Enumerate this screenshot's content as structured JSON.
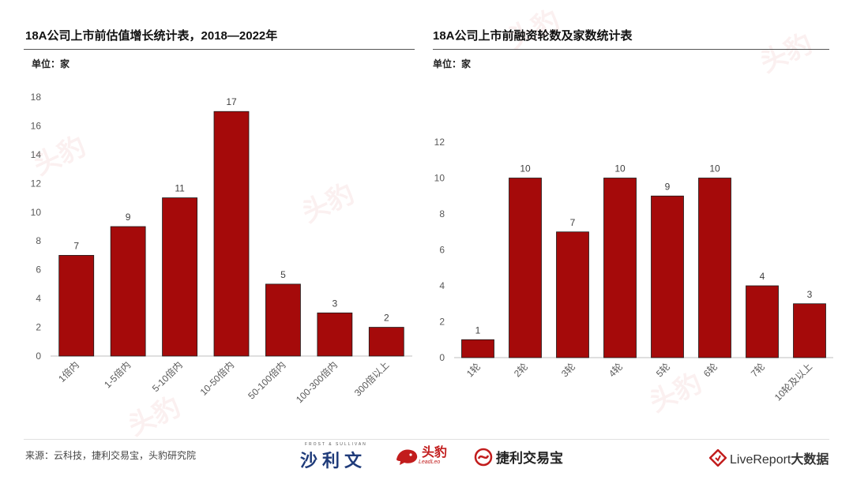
{
  "left_chart": {
    "title": "18A公司上市前估值增长统计表，2018—2022年",
    "unit": "单位：家",
    "chart_data": {
      "type": "bar",
      "categories": [
        "1倍内",
        "1-5倍内",
        "5-10倍内",
        "10-50倍内",
        "50-100倍内",
        "100-300倍内",
        "300倍以上"
      ],
      "values": [
        7,
        9,
        11,
        17,
        5,
        3,
        2
      ],
      "y_ticks": [
        0,
        2,
        4,
        6,
        8,
        10,
        12,
        14,
        16,
        18
      ],
      "ylim": [
        0,
        18
      ],
      "bar_color": "#a50a0a"
    }
  },
  "right_chart": {
    "title": "18A公司上市前融资轮数及家数统计表",
    "unit": "单位：家",
    "chart_data": {
      "type": "bar",
      "categories": [
        "1轮",
        "2轮",
        "3轮",
        "4轮",
        "5轮",
        "6轮",
        "7轮",
        "10轮及以上"
      ],
      "values": [
        1,
        10,
        7,
        10,
        9,
        10,
        4,
        3
      ],
      "y_ticks": [
        0,
        2,
        4,
        6,
        8,
        10,
        12
      ],
      "ylim": [
        0,
        12
      ],
      "bar_color": "#a50a0a"
    }
  },
  "footer": {
    "source": "来源：云科技，捷利交易宝，头豹研究院",
    "logo_shali": "沙利文",
    "logo_shali_small": "FROST & SULLIVAN",
    "logo_leadleo": "头豹",
    "logo_leadleo_sub": "LeadLeo",
    "logo_jieli": "捷利交易宝",
    "logo_live": "LiveReport",
    "logo_live_suffix": "大数据"
  },
  "colors": {
    "accent": "#a50a0a",
    "logo_red": "#c21d1d",
    "logo_blue": "#1f3b7a"
  }
}
